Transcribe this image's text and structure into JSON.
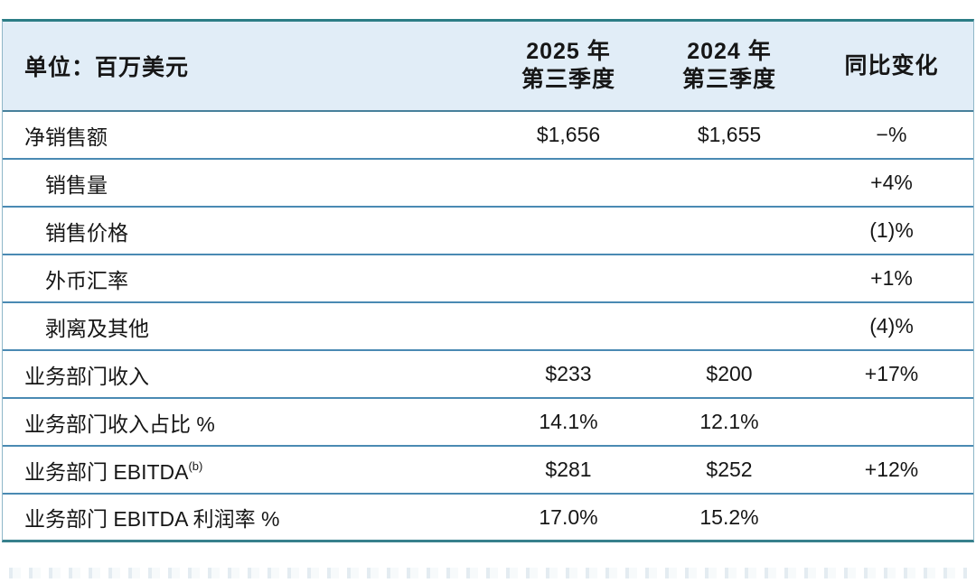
{
  "chart_data": {
    "type": "table",
    "unit_label": "单位：百万美元",
    "columns": [
      {
        "l1": "2025 年",
        "l2": "第三季度"
      },
      {
        "l1": "2024 年",
        "l2": "第三季度"
      },
      {
        "l1": "同比变化",
        "l2": ""
      }
    ],
    "rows": [
      {
        "label": "净销售额",
        "sup": "",
        "v2025": "$1,656",
        "v2024": "$1,655",
        "yoy": "−%"
      },
      {
        "label": "销售量",
        "sup": "",
        "v2025": "",
        "v2024": "",
        "yoy": "+4%"
      },
      {
        "label": "销售价格",
        "sup": "",
        "v2025": "",
        "v2024": "",
        "yoy": "(1)%"
      },
      {
        "label": "外币汇率",
        "sup": "",
        "v2025": "",
        "v2024": "",
        "yoy": "+1%"
      },
      {
        "label": "剥离及其他",
        "sup": "",
        "v2025": "",
        "v2024": "",
        "yoy": "(4)%"
      },
      {
        "label": "业务部门收入",
        "sup": "",
        "v2025": "$233",
        "v2024": "$200",
        "yoy": "+17%"
      },
      {
        "label": "业务部门收入占比 %",
        "sup": "",
        "v2025": "14.1%",
        "v2024": "12.1%",
        "yoy": ""
      },
      {
        "label": "业务部门 EBITDA",
        "sup": "(b)",
        "v2025": "$281",
        "v2024": "$252",
        "yoy": "+12%"
      },
      {
        "label": "业务部门 EBITDA 利润率 %",
        "sup": "",
        "v2025": "17.0%",
        "v2024": "15.2%",
        "yoy": ""
      }
    ],
    "colors": {
      "header_bg": "#e1edf7",
      "outer_border_top": "#2c7d86",
      "outer_border_bottom": "#37808c",
      "row_divider": "#4a8ab3",
      "header_divider": "#47809b",
      "text": "#161616"
    }
  }
}
